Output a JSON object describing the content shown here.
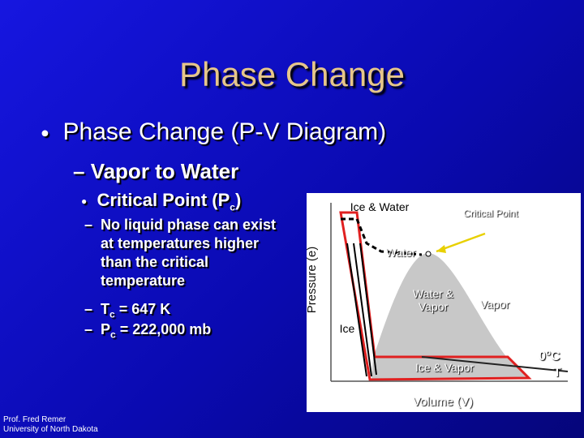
{
  "header": {
    "title": "Phase Change"
  },
  "bullets": {
    "level1": "Phase Change (P-V Diagram)",
    "level2": "Vapor to Water",
    "level3": {
      "text": "Critical Point (P",
      "sub": "c",
      "after": ")"
    },
    "level4": [
      {
        "text": "No liquid phase can exist at temperatures higher than the critical temperature"
      },
      {
        "text": "T",
        "sub": "c",
        "after": " = 647 K"
      },
      {
        "text": "P",
        "sub": "c",
        "after": " = 222,000 mb"
      }
    ]
  },
  "diagram": {
    "y_axis": "Pressure (e)",
    "x_axis": "Volume (V)",
    "ice_water": "Ice & Water",
    "critical_point": "Critical Point",
    "water": "Water",
    "water_vapor": "Water & Vapor",
    "vapor": "Vapor",
    "ice": "Ice",
    "ice_vapor": "Ice & Vapor",
    "isotherm": {
      "value": "0",
      "sup": "o",
      "unit": "C",
      "axis": "T"
    }
  },
  "footer": {
    "line1": "Prof. Fred Remer",
    "line2": "University of North Dakota"
  }
}
